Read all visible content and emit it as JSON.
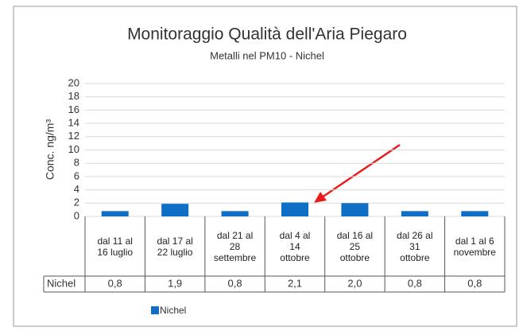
{
  "chart_data": {
    "type": "bar",
    "title": "Monitoraggio Qualità dell'Aria Piegaro",
    "subtitle": "Metalli nel PM10 - Nichel",
    "y_axis_label": "Conc. ng/m³",
    "categories": [
      "dal 11 al 16 luglio",
      "dal 17 al 22 luglio",
      "dal 21 al 28 settembre",
      "dal 4 al 14 ottobre",
      "dal 16 al 25 ottobre",
      "dal 26 al 31 ottobre",
      "dal 1 al 6 novembre"
    ],
    "series": [
      {
        "name": "Nichel",
        "color": "#0f6fc6",
        "values": [
          0.8,
          1.9,
          0.8,
          2.1,
          2.0,
          0.8,
          0.8
        ],
        "value_labels": [
          "0,8",
          "1,9",
          "0,8",
          "2,1",
          "2,0",
          "0,8",
          "0,8"
        ]
      }
    ],
    "ylim": [
      0,
      20
    ],
    "yticks": [
      0,
      2,
      4,
      6,
      8,
      10,
      12,
      14,
      16,
      18,
      20
    ],
    "grid": true,
    "legend": "bottom"
  }
}
